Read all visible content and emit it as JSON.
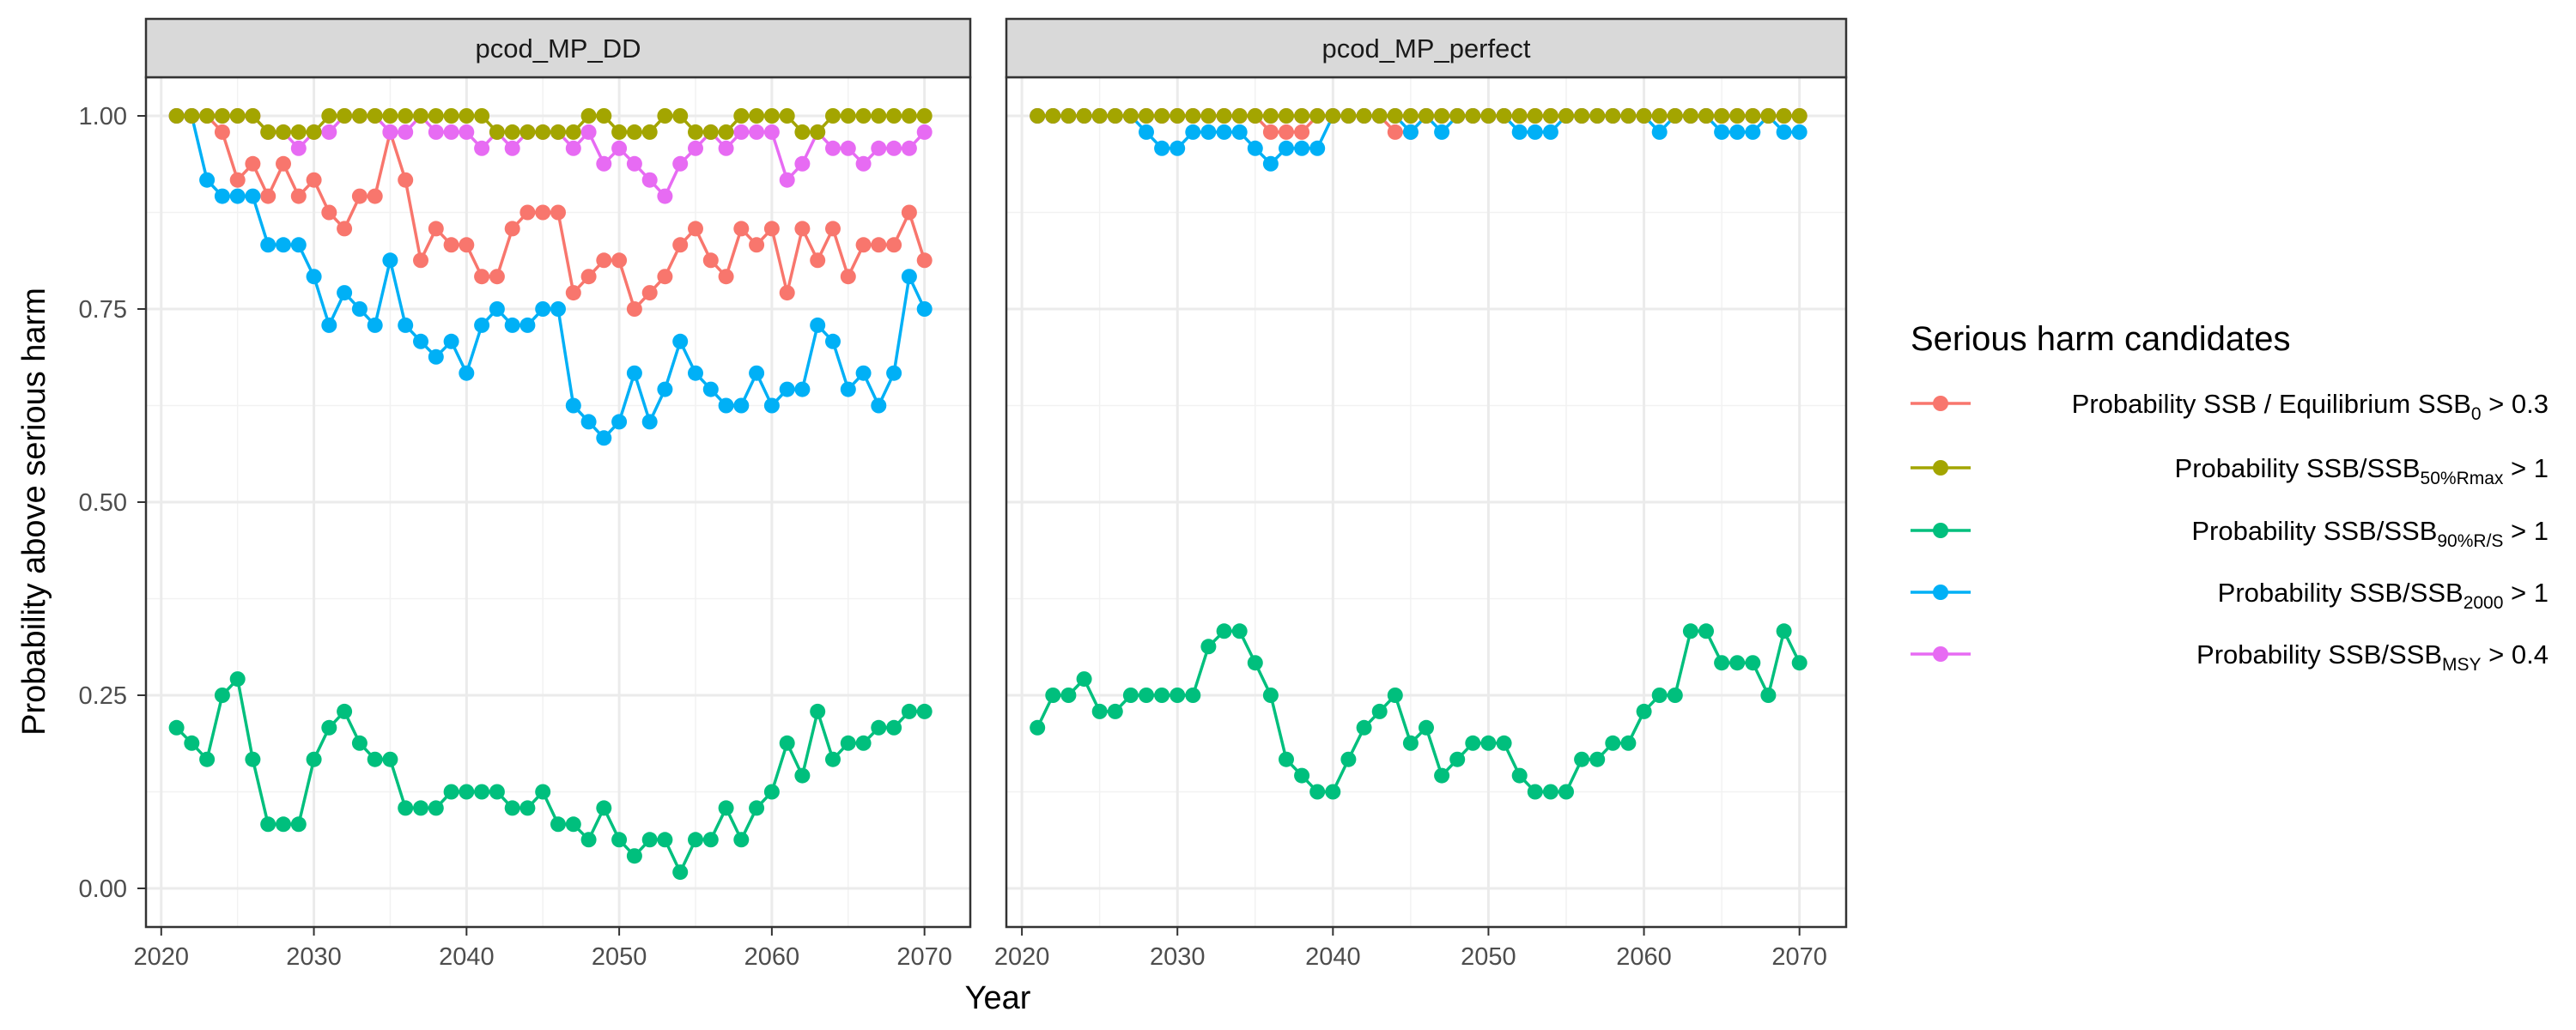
{
  "chart_data": {
    "type": "line",
    "xlabel": "Year",
    "ylabel": "Probability above serious harm",
    "xlim": [
      2019,
      2073
    ],
    "ylim": [
      -0.05,
      1.05
    ],
    "x_ticks": [
      2020,
      2030,
      2040,
      2050,
      2060,
      2070
    ],
    "x_tick_labels": [
      "2020",
      "2030",
      "2040",
      "2050",
      "2060",
      "2070"
    ],
    "y_ticks": [
      0,
      0.25,
      0.5,
      0.75,
      1.0
    ],
    "y_tick_labels": [
      "0.00",
      "0.25",
      "0.50",
      "0.75",
      "1.00"
    ],
    "grid": true,
    "legend_position": "right",
    "legend": {
      "title": "Serious harm candidates",
      "entries": [
        {
          "pre": "Probability SSB / Equilibrium SSB",
          "sub": "0",
          "post": " > 0.3",
          "color": "#F8766D"
        },
        {
          "pre": "Probability SSB/SSB",
          "sub": "50%Rmax",
          "post": " > 1",
          "color": "#A3A500"
        },
        {
          "pre": "Probability SSB/SSB",
          "sub": "90%R/S",
          "post": " > 1",
          "color": "#00BF7D"
        },
        {
          "pre": "Probability SSB/SSB",
          "sub": "2000",
          "post": " > 1",
          "color": "#00B0F6"
        },
        {
          "pre": "Probability SSB/SSB",
          "sub": "MSY",
          "post": " > 0.4",
          "color": "#E76BF3"
        }
      ]
    },
    "x_start": 2021,
    "panels": [
      {
        "title": "pcod_MP_DD",
        "series": [
          {
            "color": "#F8766D",
            "values": [
              1.0,
              1.0,
              1.0,
              0.979,
              0.917,
              0.938,
              0.896,
              0.938,
              0.896,
              0.917,
              0.875,
              0.854,
              0.896,
              0.896,
              0.979,
              0.917,
              0.813,
              0.854,
              0.833,
              0.833,
              0.792,
              0.792,
              0.854,
              0.875,
              0.875,
              0.875,
              0.771,
              0.792,
              0.813,
              0.813,
              0.75,
              0.771,
              0.792,
              0.833,
              0.854,
              0.813,
              0.792,
              0.854,
              0.833,
              0.854,
              0.771,
              0.854,
              0.813,
              0.854,
              0.792,
              0.833,
              0.833,
              0.833,
              0.875,
              0.813
            ]
          },
          {
            "color": "#00B0F6",
            "values": [
              1.0,
              1.0,
              0.917,
              0.896,
              0.896,
              0.896,
              0.833,
              0.833,
              0.833,
              0.792,
              0.729,
              0.771,
              0.75,
              0.729,
              0.813,
              0.729,
              0.708,
              0.688,
              0.708,
              0.667,
              0.729,
              0.75,
              0.729,
              0.729,
              0.75,
              0.75,
              0.625,
              0.604,
              0.583,
              0.604,
              0.667,
              0.604,
              0.646,
              0.708,
              0.667,
              0.646,
              0.625,
              0.625,
              0.667,
              0.625,
              0.646,
              0.646,
              0.729,
              0.708,
              0.646,
              0.667,
              0.625,
              0.667,
              0.792,
              0.75
            ]
          },
          {
            "color": "#E76BF3",
            "values": [
              1.0,
              1.0,
              1.0,
              1.0,
              1.0,
              1.0,
              0.979,
              0.979,
              0.958,
              0.979,
              0.979,
              1.0,
              1.0,
              1.0,
              0.979,
              0.979,
              1.0,
              0.979,
              0.979,
              0.979,
              0.958,
              0.979,
              0.958,
              0.979,
              0.979,
              0.979,
              0.958,
              0.979,
              0.938,
              0.958,
              0.938,
              0.917,
              0.896,
              0.938,
              0.958,
              0.979,
              0.958,
              0.979,
              0.979,
              0.979,
              0.917,
              0.938,
              0.979,
              0.958,
              0.958,
              0.938,
              0.958,
              0.958,
              0.958,
              0.979
            ]
          },
          {
            "color": "#A3A500",
            "values": [
              1.0,
              1.0,
              1.0,
              1.0,
              1.0,
              1.0,
              0.979,
              0.979,
              0.979,
              0.979,
              1.0,
              1.0,
              1.0,
              1.0,
              1.0,
              1.0,
              1.0,
              1.0,
              1.0,
              1.0,
              1.0,
              0.979,
              0.979,
              0.979,
              0.979,
              0.979,
              0.979,
              1.0,
              1.0,
              0.979,
              0.979,
              0.979,
              1.0,
              1.0,
              0.979,
              0.979,
              0.979,
              1.0,
              1.0,
              1.0,
              1.0,
              0.979,
              0.979,
              1.0,
              1.0,
              1.0,
              1.0,
              1.0,
              1.0,
              1.0
            ]
          },
          {
            "color": "#00BF7D",
            "values": [
              0.208,
              0.188,
              0.167,
              0.25,
              0.271,
              0.167,
              0.083,
              0.083,
              0.083,
              0.167,
              0.208,
              0.229,
              0.188,
              0.167,
              0.167,
              0.104,
              0.104,
              0.104,
              0.125,
              0.125,
              0.125,
              0.125,
              0.104,
              0.104,
              0.125,
              0.083,
              0.083,
              0.063,
              0.104,
              0.063,
              0.042,
              0.063,
              0.063,
              0.021,
              0.063,
              0.063,
              0.104,
              0.063,
              0.104,
              0.125,
              0.188,
              0.146,
              0.229,
              0.167,
              0.188,
              0.188,
              0.208,
              0.208,
              0.229,
              0.229
            ]
          }
        ]
      },
      {
        "title": "pcod_MP_perfect",
        "series": [
          {
            "color": "#F8766D",
            "values": [
              1.0,
              1.0,
              1.0,
              1.0,
              1.0,
              1.0,
              1.0,
              1.0,
              1.0,
              1.0,
              1.0,
              1.0,
              1.0,
              1.0,
              1.0,
              0.979,
              0.979,
              0.979,
              1.0,
              1.0,
              1.0,
              1.0,
              1.0,
              0.979,
              0.979,
              1.0,
              1.0,
              1.0,
              1.0,
              1.0,
              1.0,
              1.0,
              1.0,
              1.0,
              1.0,
              1.0,
              1.0,
              1.0,
              1.0,
              1.0,
              1.0,
              1.0,
              1.0,
              1.0,
              1.0,
              1.0,
              1.0,
              1.0,
              1.0,
              1.0
            ]
          },
          {
            "color": "#00B0F6",
            "values": [
              1.0,
              1.0,
              1.0,
              1.0,
              1.0,
              1.0,
              1.0,
              0.979,
              0.958,
              0.958,
              0.979,
              0.979,
              0.979,
              0.979,
              0.958,
              0.938,
              0.958,
              0.958,
              0.958,
              1.0,
              1.0,
              1.0,
              1.0,
              1.0,
              0.979,
              1.0,
              0.979,
              1.0,
              1.0,
              1.0,
              1.0,
              0.979,
              0.979,
              0.979,
              1.0,
              1.0,
              1.0,
              1.0,
              1.0,
              1.0,
              0.979,
              1.0,
              1.0,
              1.0,
              0.979,
              0.979,
              0.979,
              1.0,
              0.979,
              0.979
            ]
          },
          {
            "color": "#E76BF3",
            "values": [
              1.0,
              1.0,
              1.0,
              1.0,
              1.0,
              1.0,
              1.0,
              1.0,
              1.0,
              1.0,
              1.0,
              1.0,
              1.0,
              1.0,
              1.0,
              1.0,
              1.0,
              1.0,
              1.0,
              1.0,
              1.0,
              1.0,
              1.0,
              1.0,
              1.0,
              1.0,
              1.0,
              1.0,
              1.0,
              1.0,
              1.0,
              1.0,
              1.0,
              1.0,
              1.0,
              1.0,
              1.0,
              1.0,
              1.0,
              1.0,
              1.0,
              1.0,
              1.0,
              1.0,
              1.0,
              1.0,
              1.0,
              1.0,
              1.0,
              1.0
            ]
          },
          {
            "color": "#A3A500",
            "values": [
              1.0,
              1.0,
              1.0,
              1.0,
              1.0,
              1.0,
              1.0,
              1.0,
              1.0,
              1.0,
              1.0,
              1.0,
              1.0,
              1.0,
              1.0,
              1.0,
              1.0,
              1.0,
              1.0,
              1.0,
              1.0,
              1.0,
              1.0,
              1.0,
              1.0,
              1.0,
              1.0,
              1.0,
              1.0,
              1.0,
              1.0,
              1.0,
              1.0,
              1.0,
              1.0,
              1.0,
              1.0,
              1.0,
              1.0,
              1.0,
              1.0,
              1.0,
              1.0,
              1.0,
              1.0,
              1.0,
              1.0,
              1.0,
              1.0,
              1.0
            ]
          },
          {
            "color": "#00BF7D",
            "values": [
              0.208,
              0.25,
              0.25,
              0.271,
              0.229,
              0.229,
              0.25,
              0.25,
              0.25,
              0.25,
              0.25,
              0.313,
              0.333,
              0.333,
              0.292,
              0.25,
              0.167,
              0.146,
              0.125,
              0.125,
              0.167,
              0.208,
              0.229,
              0.25,
              0.188,
              0.208,
              0.146,
              0.167,
              0.188,
              0.188,
              0.188,
              0.146,
              0.125,
              0.125,
              0.125,
              0.167,
              0.167,
              0.188,
              0.188,
              0.229,
              0.25,
              0.25,
              0.333,
              0.333,
              0.292,
              0.292,
              0.292,
              0.25,
              0.333,
              0.292
            ]
          }
        ]
      }
    ]
  }
}
